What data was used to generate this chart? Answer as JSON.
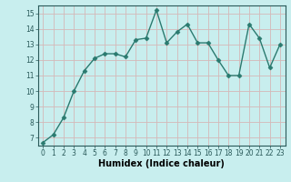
{
  "x": [
    0,
    1,
    2,
    3,
    4,
    5,
    6,
    7,
    8,
    9,
    10,
    11,
    12,
    13,
    14,
    15,
    16,
    17,
    18,
    19,
    20,
    21,
    22,
    23
  ],
  "y": [
    6.7,
    7.2,
    8.3,
    10.0,
    11.3,
    12.1,
    12.4,
    12.4,
    12.2,
    13.3,
    13.4,
    15.2,
    13.1,
    13.8,
    14.3,
    13.1,
    13.1,
    12.0,
    11.0,
    11.0,
    14.3,
    13.4,
    11.5,
    13.0
  ],
  "line_color": "#2a7a6f",
  "marker": "D",
  "markersize": 2.5,
  "linewidth": 1.0,
  "xlabel": "Humidex (Indice chaleur)",
  "xlabel_fontsize": 7,
  "background_color": "#c8eeee",
  "grid_color": "#d4b8b8",
  "ylim": [
    6.5,
    15.5
  ],
  "xlim": [
    -0.5,
    23.5
  ],
  "yticks": [
    7,
    8,
    9,
    10,
    11,
    12,
    13,
    14,
    15
  ],
  "xticks": [
    0,
    1,
    2,
    3,
    4,
    5,
    6,
    7,
    8,
    9,
    10,
    11,
    12,
    13,
    14,
    15,
    16,
    17,
    18,
    19,
    20,
    21,
    22,
    23
  ],
  "tick_fontsize": 5.5
}
